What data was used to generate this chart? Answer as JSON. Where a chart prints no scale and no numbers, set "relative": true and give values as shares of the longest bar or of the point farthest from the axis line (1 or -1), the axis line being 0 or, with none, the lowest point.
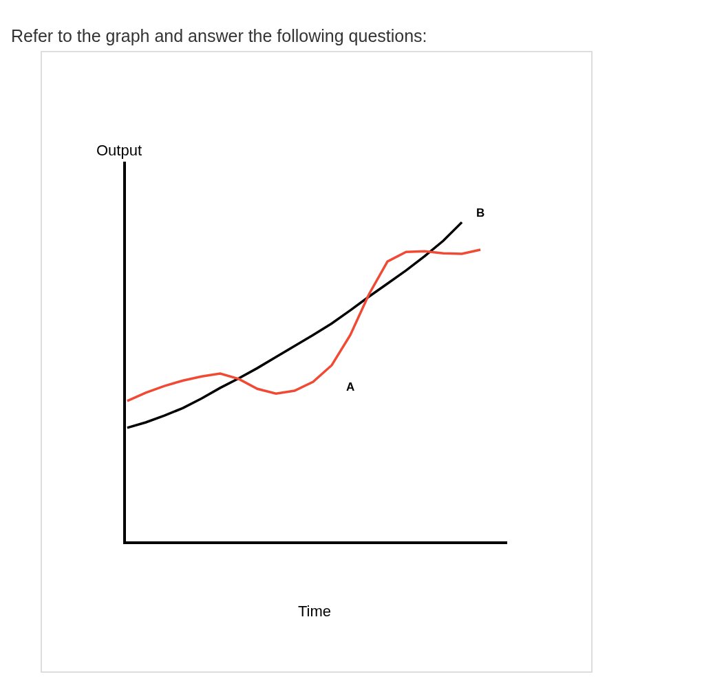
{
  "chart_data": {
    "type": "line",
    "relative": true,
    "title": "Refer to the graph and answer the following questions:",
    "xlabel": "Time",
    "ylabel": "Output",
    "categories": [
      null,
      null,
      null,
      null,
      null,
      null,
      null,
      null,
      null,
      null,
      null,
      null,
      null,
      null,
      null,
      null,
      null,
      null,
      null,
      null
    ],
    "series": [
      {
        "color": "#000000",
        "values": [
          0.356,
          0.373,
          0.394,
          0.418,
          0.448,
          0.481,
          0.511,
          0.543,
          0.578,
          0.612,
          0.647,
          0.683,
          0.724,
          0.767,
          0.808,
          0.849,
          0.894,
          0.942,
          1.0,
          null
        ]
      },
      {
        "color": "#f04a35",
        "values": [
          0.44,
          0.466,
          0.487,
          0.504,
          0.517,
          0.526,
          0.509,
          0.478,
          0.463,
          0.472,
          0.5,
          0.552,
          0.647,
          0.774,
          0.877,
          0.907,
          0.909,
          0.903,
          0.901,
          0.914
        ]
      }
    ],
    "annotations": [
      "A",
      "B"
    ]
  }
}
